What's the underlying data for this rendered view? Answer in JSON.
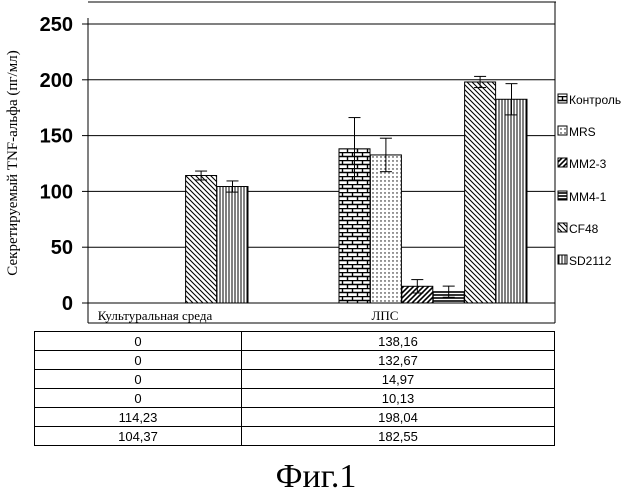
{
  "chart_data": {
    "type": "bar",
    "ylabel": "Секретируемый TNF-альфа (пг/мл)",
    "ylim": [
      0,
      250
    ],
    "yticks": [
      "0",
      "50",
      "100",
      "150",
      "200",
      "250"
    ],
    "grid": true,
    "legend_position": "right",
    "categories": [
      "Культуральная среда",
      "ЛПС"
    ],
    "series": [
      {
        "name": "Контроль",
        "values": [
          0,
          138.16
        ],
        "error": [
          0,
          28
        ],
        "pattern": "brick"
      },
      {
        "name": "MRS",
        "values": [
          0,
          132.67
        ],
        "error": [
          0,
          15
        ],
        "pattern": "dots"
      },
      {
        "name": "MM2-3",
        "values": [
          0,
          14.97
        ],
        "error": [
          0,
          6
        ],
        "pattern": "diag-up"
      },
      {
        "name": "MM4-1",
        "values": [
          0,
          10.13
        ],
        "error": [
          0,
          5
        ],
        "pattern": "horizontal"
      },
      {
        "name": "CF48",
        "values": [
          114.23,
          198.04
        ],
        "error": [
          4,
          5
        ],
        "pattern": "diag-down"
      },
      {
        "name": "SD2112",
        "values": [
          104.37,
          182.55
        ],
        "error": [
          5,
          14
        ],
        "pattern": "vertical"
      }
    ]
  },
  "table": {
    "rows": [
      [
        "0",
        "138,16"
      ],
      [
        "0",
        "132,67"
      ],
      [
        "0",
        "14,97"
      ],
      [
        "0",
        "10,13"
      ],
      [
        "114,23",
        "198,04"
      ],
      [
        "104,37",
        "182,55"
      ]
    ]
  },
  "caption": "Фиг.1"
}
